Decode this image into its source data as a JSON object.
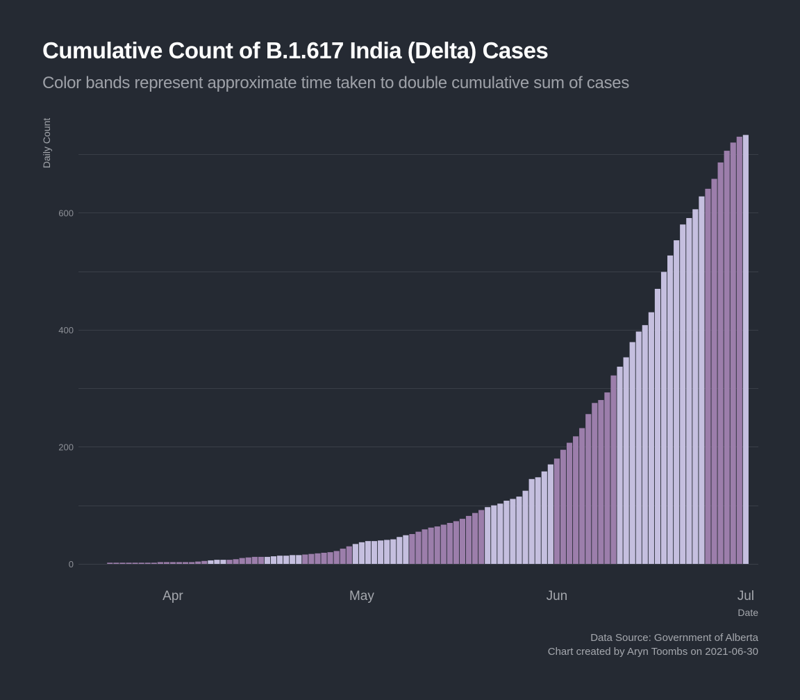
{
  "header": {
    "title": "Cumulative Count of B.1.617 India (Delta) Cases",
    "subtitle": "Color bands represent approximate time taken to double cumulative sum of cases"
  },
  "caption": {
    "line1": "Data Source: Government of Alberta",
    "line2": "Chart created by Aryn Toombs on 2021-06-30"
  },
  "colors": {
    "background": "#252a33",
    "grid": "#3a3f48",
    "band_dark": "#9c7eab",
    "band_light": "#c5bfdf"
  },
  "chart_data": {
    "type": "bar",
    "title": "Cumulative Count of B.1.617 India (Delta) Cases",
    "subtitle": "Color bands represent approximate time taken to double cumulative sum of cases",
    "xlabel": "Date",
    "ylabel": "Daily Count",
    "ylim": [
      0,
      750
    ],
    "y_ticks": [
      0,
      200,
      400,
      600
    ],
    "x_ticks": [
      {
        "label": "Apr",
        "date": "2021-04-01"
      },
      {
        "label": "May",
        "date": "2021-05-01"
      },
      {
        "label": "Jun",
        "date": "2021-06-01"
      },
      {
        "label": "Jul",
        "date": "2021-07-01"
      }
    ],
    "x_range": [
      "2021-03-17",
      "2021-07-03"
    ],
    "grid": true,
    "legend": "none",
    "start_date": "2021-03-22",
    "values": [
      2,
      2,
      2,
      2,
      2,
      2,
      2,
      2,
      3,
      3,
      3,
      3,
      3,
      3,
      4,
      5,
      6,
      7,
      7,
      7,
      8,
      10,
      11,
      12,
      12,
      12,
      13,
      14,
      14,
      15,
      15,
      16,
      17,
      18,
      19,
      20,
      22,
      26,
      30,
      34,
      37,
      39,
      39,
      40,
      41,
      42,
      46,
      49,
      51,
      55,
      59,
      62,
      64,
      67,
      70,
      73,
      77,
      82,
      87,
      92,
      97,
      100,
      103,
      108,
      111,
      115,
      125,
      145,
      148,
      158,
      170,
      180,
      195,
      207,
      218,
      232,
      256,
      275,
      280,
      293,
      322,
      337,
      353,
      379,
      397,
      408,
      430,
      470,
      499,
      527,
      553,
      580,
      591,
      606,
      628,
      641,
      658,
      686,
      706,
      720,
      730,
      733
    ],
    "bands": [
      {
        "start": "2021-03-22",
        "end": "2021-04-06",
        "color": "dark"
      },
      {
        "start": "2021-04-07",
        "end": "2021-04-09",
        "color": "light"
      },
      {
        "start": "2021-04-10",
        "end": "2021-04-15",
        "color": "dark"
      },
      {
        "start": "2021-04-16",
        "end": "2021-04-21",
        "color": "light"
      },
      {
        "start": "2021-04-22",
        "end": "2021-04-29",
        "color": "dark"
      },
      {
        "start": "2021-04-30",
        "end": "2021-05-08",
        "color": "light"
      },
      {
        "start": "2021-05-09",
        "end": "2021-05-20",
        "color": "dark"
      },
      {
        "start": "2021-05-21",
        "end": "2021-05-31",
        "color": "light"
      },
      {
        "start": "2021-06-01",
        "end": "2021-06-10",
        "color": "dark"
      },
      {
        "start": "2021-06-11",
        "end": "2021-06-24",
        "color": "light"
      },
      {
        "start": "2021-06-25",
        "end": "2021-06-30",
        "color": "dark"
      }
    ]
  }
}
